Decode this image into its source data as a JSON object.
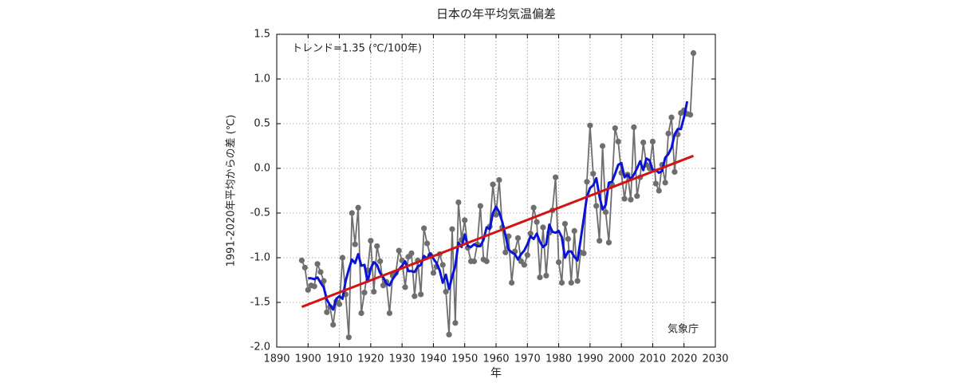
{
  "chart_data": {
    "type": "line",
    "title": "日本の年平均気温偏差",
    "x_label": "年",
    "y_label": "1991-2020年平均からの差 (℃)",
    "annotations": [
      "トレンド=1.35 (℃/100年)",
      "気象庁"
    ],
    "grid": true,
    "xlim": [
      1890,
      2030
    ],
    "xticks": [
      1890,
      1900,
      1910,
      1920,
      1930,
      1940,
      1950,
      1960,
      1970,
      1980,
      1990,
      2000,
      2010,
      2020,
      2030
    ],
    "ylim": [
      -2.0,
      1.5
    ],
    "yticks": [
      {
        "value": -2.0,
        "label": "-2.0"
      },
      -1.5,
      {
        "value": -1.0,
        "label": "-1.0"
      },
      -0.5,
      {
        "value": 0.0,
        "label": "0.0"
      },
      0.5,
      {
        "value": 1.0,
        "label": "1.0"
      },
      1.5
    ],
    "x": [
      1898,
      1899,
      1900,
      1901,
      1902,
      1903,
      1904,
      1905,
      1906,
      1907,
      1908,
      1909,
      1910,
      1911,
      1912,
      1913,
      1914,
      1915,
      1916,
      1917,
      1918,
      1919,
      1920,
      1921,
      1922,
      1923,
      1924,
      1925,
      1926,
      1927,
      1928,
      1929,
      1930,
      1931,
      1932,
      1933,
      1934,
      1935,
      1936,
      1937,
      1938,
      1939,
      1940,
      1941,
      1942,
      1943,
      1944,
      1945,
      1946,
      1947,
      1948,
      1949,
      1950,
      1951,
      1952,
      1953,
      1954,
      1955,
      1956,
      1957,
      1958,
      1959,
      1960,
      1961,
      1962,
      1963,
      1964,
      1965,
      1966,
      1967,
      1968,
      1969,
      1970,
      1971,
      1972,
      1973,
      1974,
      1975,
      1976,
      1977,
      1978,
      1979,
      1980,
      1981,
      1982,
      1983,
      1984,
      1985,
      1986,
      1987,
      1988,
      1989,
      1990,
      1991,
      1992,
      1993,
      1994,
      1995,
      1996,
      1997,
      1998,
      1999,
      2000,
      2001,
      2002,
      2003,
      2004,
      2005,
      2006,
      2007,
      2008,
      2009,
      2010,
      2011,
      2012,
      2013,
      2014,
      2015,
      2016,
      2017,
      2018,
      2019,
      2020,
      2021,
      2022,
      2023
    ],
    "series": [
      {
        "color": "#6e6e6e",
        "markers": true,
        "values": [
          -1.03,
          -1.11,
          -1.36,
          -1.31,
          -1.32,
          -1.07,
          -1.16,
          -1.26,
          -1.61,
          -1.55,
          -1.75,
          -1.49,
          -1.52,
          -1.0,
          -1.41,
          -1.89,
          -0.5,
          -0.85,
          -0.44,
          -1.62,
          -1.39,
          -1.14,
          -0.81,
          -1.38,
          -0.87,
          -1.04,
          -1.31,
          -1.27,
          -1.62,
          -1.2,
          -1.17,
          -0.92,
          -1.03,
          -1.33,
          -0.99,
          -0.95,
          -1.43,
          -1.03,
          -1.41,
          -0.67,
          -0.84,
          -0.97,
          -1.17,
          -1.1,
          -0.96,
          -1.08,
          -1.38,
          -1.86,
          -0.68,
          -1.73,
          -0.38,
          -0.8,
          -0.58,
          -0.89,
          -1.04,
          -1.04,
          -0.85,
          -0.42,
          -1.02,
          -1.04,
          -0.65,
          -0.18,
          -0.52,
          -0.13,
          -0.66,
          -0.94,
          -0.76,
          -1.28,
          -0.93,
          -0.78,
          -1.04,
          -1.08,
          -0.97,
          -0.73,
          -0.44,
          -0.6,
          -1.22,
          -0.66,
          -1.2,
          -0.72,
          -0.47,
          -0.1,
          -1.05,
          -1.28,
          -0.62,
          -0.79,
          -1.28,
          -0.7,
          -1.26,
          -0.94,
          -0.95,
          -0.15,
          0.48,
          -0.06,
          -0.42,
          -0.81,
          0.25,
          -0.49,
          -0.83,
          -0.18,
          0.45,
          0.3,
          -0.05,
          -0.34,
          -0.07,
          -0.35,
          0.46,
          -0.31,
          -0.1,
          0.29,
          0.04,
          0.0,
          0.3,
          -0.17,
          -0.25,
          0.04,
          -0.16,
          0.39,
          0.57,
          -0.04,
          0.38,
          0.62,
          0.65,
          0.61,
          0.6,
          1.29
        ]
      },
      {
        "color": "#0a14d2",
        "markers": false,
        "values": [
          null,
          null,
          -1.23,
          -1.23,
          -1.24,
          -1.22,
          -1.28,
          -1.33,
          -1.47,
          -1.53,
          -1.58,
          -1.46,
          -1.43,
          -1.46,
          -1.26,
          -1.13,
          -1.02,
          -1.06,
          -0.96,
          -1.09,
          -1.08,
          -1.27,
          -1.12,
          -1.05,
          -1.08,
          -1.17,
          -1.22,
          -1.29,
          -1.31,
          -1.24,
          -1.19,
          -1.13,
          -1.09,
          -1.04,
          -1.15,
          -1.15,
          -1.16,
          -1.1,
          -1.08,
          -0.98,
          -1.01,
          -0.95,
          -1.01,
          -1.06,
          -1.14,
          -1.28,
          -1.19,
          -1.35,
          -1.21,
          -1.09,
          -0.83,
          -0.88,
          -0.74,
          -0.87,
          -0.88,
          -0.85,
          -0.87,
          -0.87,
          -0.8,
          -0.66,
          -0.68,
          -0.5,
          -0.43,
          -0.49,
          -0.6,
          -0.75,
          -0.91,
          -0.94,
          -0.96,
          -1.02,
          -0.96,
          -0.92,
          -0.85,
          -0.76,
          -0.79,
          -0.73,
          -0.82,
          -0.88,
          -0.85,
          -0.63,
          -0.71,
          -0.72,
          -0.7,
          -0.77,
          -1.0,
          -0.93,
          -0.93,
          -0.99,
          -1.03,
          -0.8,
          -0.56,
          -0.32,
          -0.22,
          -0.19,
          -0.11,
          -0.31,
          -0.46,
          -0.41,
          -0.16,
          -0.15,
          -0.06,
          0.04,
          0.06,
          -0.1,
          -0.07,
          -0.12,
          -0.07,
          0.0,
          0.08,
          -0.02,
          0.11,
          0.09,
          -0.02,
          -0.02,
          -0.05,
          -0.03,
          0.12,
          0.16,
          0.23,
          0.38,
          0.44,
          0.44,
          0.57,
          0.75,
          null,
          null
        ]
      },
      {
        "color": "#d21414",
        "markers": false,
        "x": [
          1898,
          2023
        ],
        "values": [
          -1.55,
          0.14
        ]
      }
    ]
  }
}
